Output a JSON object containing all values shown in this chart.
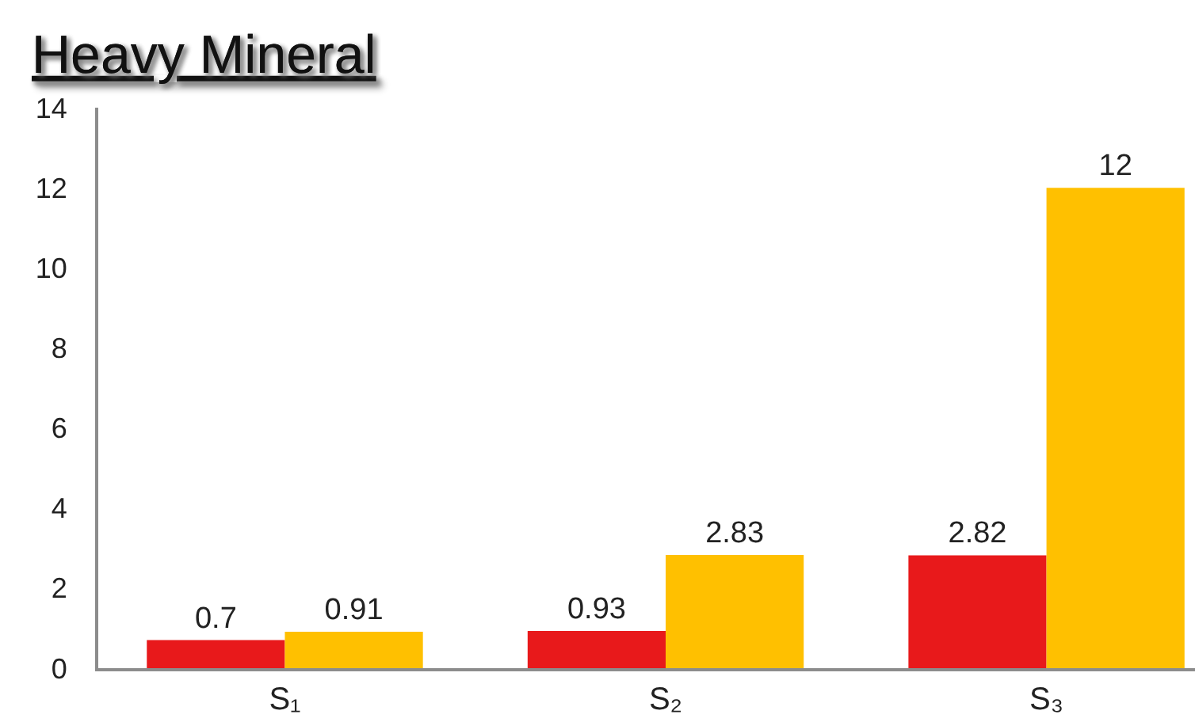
{
  "chart_data": {
    "type": "bar",
    "title": "Heavy Mineral",
    "categories": [
      "S₁",
      "S₂",
      "S₃"
    ],
    "series": [
      {
        "color": "#e8191b",
        "values": [
          0.7,
          0.93,
          2.82
        ]
      },
      {
        "color": "#ffc000",
        "values": [
          0.91,
          2.83,
          12
        ]
      }
    ],
    "ylim": [
      0,
      14
    ],
    "yticks": [
      0,
      2,
      4,
      6,
      8,
      10,
      12,
      14
    ],
    "data_labels": true,
    "grid": false
  }
}
